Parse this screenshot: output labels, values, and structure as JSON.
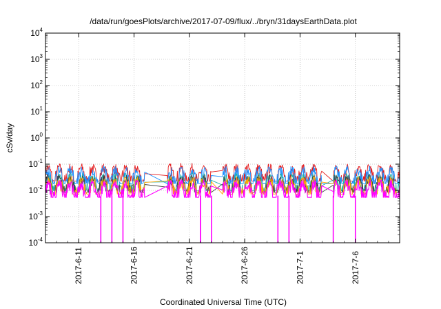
{
  "chart_data": {
    "type": "line",
    "title": "/data/run/goesPlots/archive/2017-07-09/flux/../bryn/31daysEarthData.plot",
    "xlabel": "Coordinated Universal Time (UTC)",
    "ylabel": "cSv/day",
    "yscale": "log",
    "ylim": [
      0.0001,
      10000
    ],
    "xlim": [
      "2017-06-08",
      "2017-07-10"
    ],
    "grid": true,
    "x_ticks": [
      "2017-6-11",
      "2017-6-16",
      "2017-6-21",
      "2017-6-26",
      "2017-7-1",
      "2017-7-6"
    ],
    "y_ticks": [
      {
        "base": "10",
        "exp": "-4",
        "value": 0.0001
      },
      {
        "base": "10",
        "exp": "-3",
        "value": 0.001
      },
      {
        "base": "10",
        "exp": "-2",
        "value": 0.01
      },
      {
        "base": "10",
        "exp": "-1",
        "value": 0.1
      },
      {
        "base": "10",
        "exp": "0",
        "value": 1
      },
      {
        "base": "10",
        "exp": "1",
        "value": 10
      },
      {
        "base": "10",
        "exp": "2",
        "value": 100
      },
      {
        "base": "10",
        "exp": "3",
        "value": 1000
      },
      {
        "base": "10",
        "exp": "4",
        "value": 10000
      }
    ],
    "data_segments": [
      {
        "start": "2017-06-08",
        "end": "2017-06-17"
      },
      {
        "start": "2017-06-19",
        "end": "2017-06-23"
      },
      {
        "start": "2017-06-24",
        "end": "2017-07-03"
      },
      {
        "start": "2017-07-04",
        "end": "2017-07-10"
      }
    ],
    "dropouts": [
      "2017-06-13",
      "2017-06-14",
      "2017-06-15",
      "2017-06-22",
      "2017-06-22",
      "2017-06-23",
      "2017-06-29",
      "2017-06-30",
      "2017-07-04",
      "2017-07-06"
    ],
    "series": [
      {
        "color": "#e41a1c",
        "level": 0.075,
        "spread": 0.12
      },
      {
        "color": "#1e90ff",
        "level": 0.06,
        "spread": 0.1
      },
      {
        "color": "#20b2aa",
        "level": 0.032,
        "spread": 0.05
      },
      {
        "color": "#404040",
        "level": 0.028,
        "spread": 0.045
      },
      {
        "color": "#ffa500",
        "level": 0.024,
        "spread": 0.04
      },
      {
        "color": "#ff00ff",
        "level": 0.018,
        "spread": 0.03
      }
    ]
  }
}
